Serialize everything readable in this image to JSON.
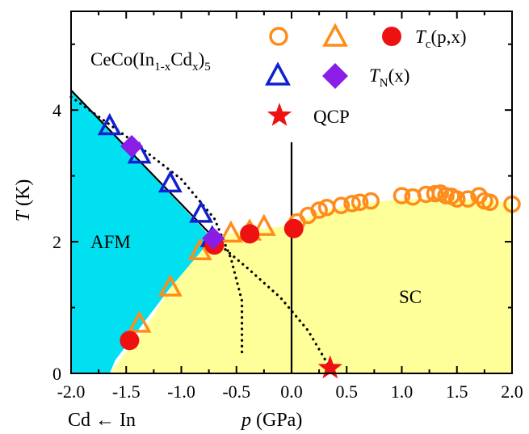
{
  "chart_data": {
    "type": "scatter",
    "xlim": [
      -2.0,
      2.0
    ],
    "ylim": [
      0,
      5.5
    ],
    "x_ticks": [
      -2.0,
      -1.5,
      -1.0,
      -0.5,
      0.0,
      0.5,
      1.0,
      1.5,
      2.0
    ],
    "x_tick_labels": [
      "-2.0",
      "-1.5",
      "-1.0",
      "-0.5",
      "0.0",
      "0.5",
      "1.0",
      "1.5",
      "2.0"
    ],
    "y_ticks": [
      0,
      2,
      4
    ],
    "y_tick_labels": [
      "0",
      "2",
      "4"
    ],
    "xlabel": {
      "italic": "p",
      "rest": " (GPa)"
    },
    "xlabel_left": "Cd ← In",
    "ylabel": {
      "italic": "T",
      "rest": " (K)"
    },
    "compound": {
      "base": "CeCo(In",
      "sub1": "1-x",
      "mid": "Cd",
      "sub2": "x",
      "end": ")",
      "sub3": "5"
    },
    "legend": {
      "tc": {
        "italic": "T",
        "sub": "c",
        "rest": "(p,x)"
      },
      "tn": {
        "italic": "T",
        "sub": "N",
        "rest": "(x)"
      },
      "qcp": "QCP"
    },
    "region_labels": {
      "afm": "AFM",
      "sc": "SC"
    },
    "colors": {
      "orange": "#ff8c1a",
      "blue": "#1020d0",
      "purple": "#8a1ee6",
      "red": "#ee1111",
      "afm_fill": "#00e0f0",
      "sc_fill": "#ffff99"
    },
    "afm_region": [
      [
        -2.0,
        4.3
      ],
      [
        -0.72,
        2.05
      ],
      [
        -1.1,
        1.3
      ],
      [
        -1.6,
        0.2
      ],
      [
        -1.65,
        0.0
      ],
      [
        -2.0,
        0.0
      ]
    ],
    "sc_region": [
      [
        -1.65,
        0.0
      ],
      [
        -1.3,
        0.75
      ],
      [
        -1.1,
        1.3
      ],
      [
        -0.72,
        2.05
      ],
      [
        -0.5,
        2.15
      ],
      [
        -0.25,
        2.2
      ],
      [
        0.0,
        2.25
      ],
      [
        0.25,
        2.45
      ],
      [
        0.5,
        2.55
      ],
      [
        1.0,
        2.65
      ],
      [
        1.5,
        2.65
      ],
      [
        2.0,
        2.6
      ],
      [
        2.0,
        0.0
      ]
    ],
    "series": [
      {
        "name": "Tc open circle",
        "marker": "circle-open",
        "color": "orange",
        "x": [
          0.05,
          0.15,
          0.25,
          0.32,
          0.45,
          0.55,
          0.62,
          0.72,
          1.0,
          1.1,
          1.22,
          1.3,
          1.35,
          1.4,
          1.45,
          1.5,
          1.6,
          1.7,
          1.75,
          1.8,
          2.0
        ],
        "y": [
          2.3,
          2.4,
          2.48,
          2.52,
          2.55,
          2.58,
          2.6,
          2.62,
          2.7,
          2.68,
          2.72,
          2.73,
          2.74,
          2.7,
          2.69,
          2.65,
          2.65,
          2.7,
          2.62,
          2.6,
          2.57
        ]
      },
      {
        "name": "Tc open triangle",
        "marker": "triangle-open",
        "color": "orange",
        "x": [
          -1.38,
          -1.1,
          -0.83,
          -0.55,
          -0.38,
          -0.25
        ],
        "y": [
          0.75,
          1.3,
          1.85,
          2.12,
          2.15,
          2.22
        ]
      },
      {
        "name": "Tc filled circle",
        "marker": "circle-filled",
        "color": "red",
        "x": [
          -1.47,
          -0.7,
          -0.38,
          0.02
        ],
        "y": [
          0.5,
          1.95,
          2.12,
          2.2
        ]
      },
      {
        "name": "TN open triangle",
        "marker": "triangle-open",
        "color": "blue",
        "x": [
          -1.65,
          -1.38,
          -1.1,
          -0.82,
          -0.72
        ],
        "y": [
          3.75,
          3.32,
          2.88,
          2.42,
          2.05
        ]
      },
      {
        "name": "TN diamond",
        "marker": "diamond-filled",
        "color": "purple",
        "x": [
          -1.45,
          -0.71
        ],
        "y": [
          3.45,
          2.05
        ]
      },
      {
        "name": "QCP star",
        "marker": "star-filled",
        "color": "red",
        "x": [
          0.35
        ],
        "y": [
          0.08
        ]
      }
    ],
    "lines": [
      {
        "style": "solid",
        "points": [
          [
            -2.0,
            4.3
          ],
          [
            -0.7,
            2.05
          ]
        ]
      },
      {
        "style": "dotted",
        "points": [
          [
            -2.0,
            4.2
          ],
          [
            -1.5,
            3.6
          ],
          [
            -1.0,
            2.95
          ],
          [
            -0.7,
            2.35
          ],
          [
            -0.55,
            1.75
          ],
          [
            -0.45,
            1.1
          ],
          [
            -0.45,
            0.3
          ]
        ]
      },
      {
        "style": "dotted",
        "points": [
          [
            -0.72,
            2.05
          ],
          [
            -0.4,
            1.6
          ],
          [
            -0.1,
            1.15
          ],
          [
            0.15,
            0.65
          ],
          [
            0.35,
            0.08
          ]
        ]
      },
      {
        "style": "solid",
        "points": [
          [
            0.0,
            3.5
          ],
          [
            0.0,
            0.0
          ]
        ]
      }
    ]
  }
}
